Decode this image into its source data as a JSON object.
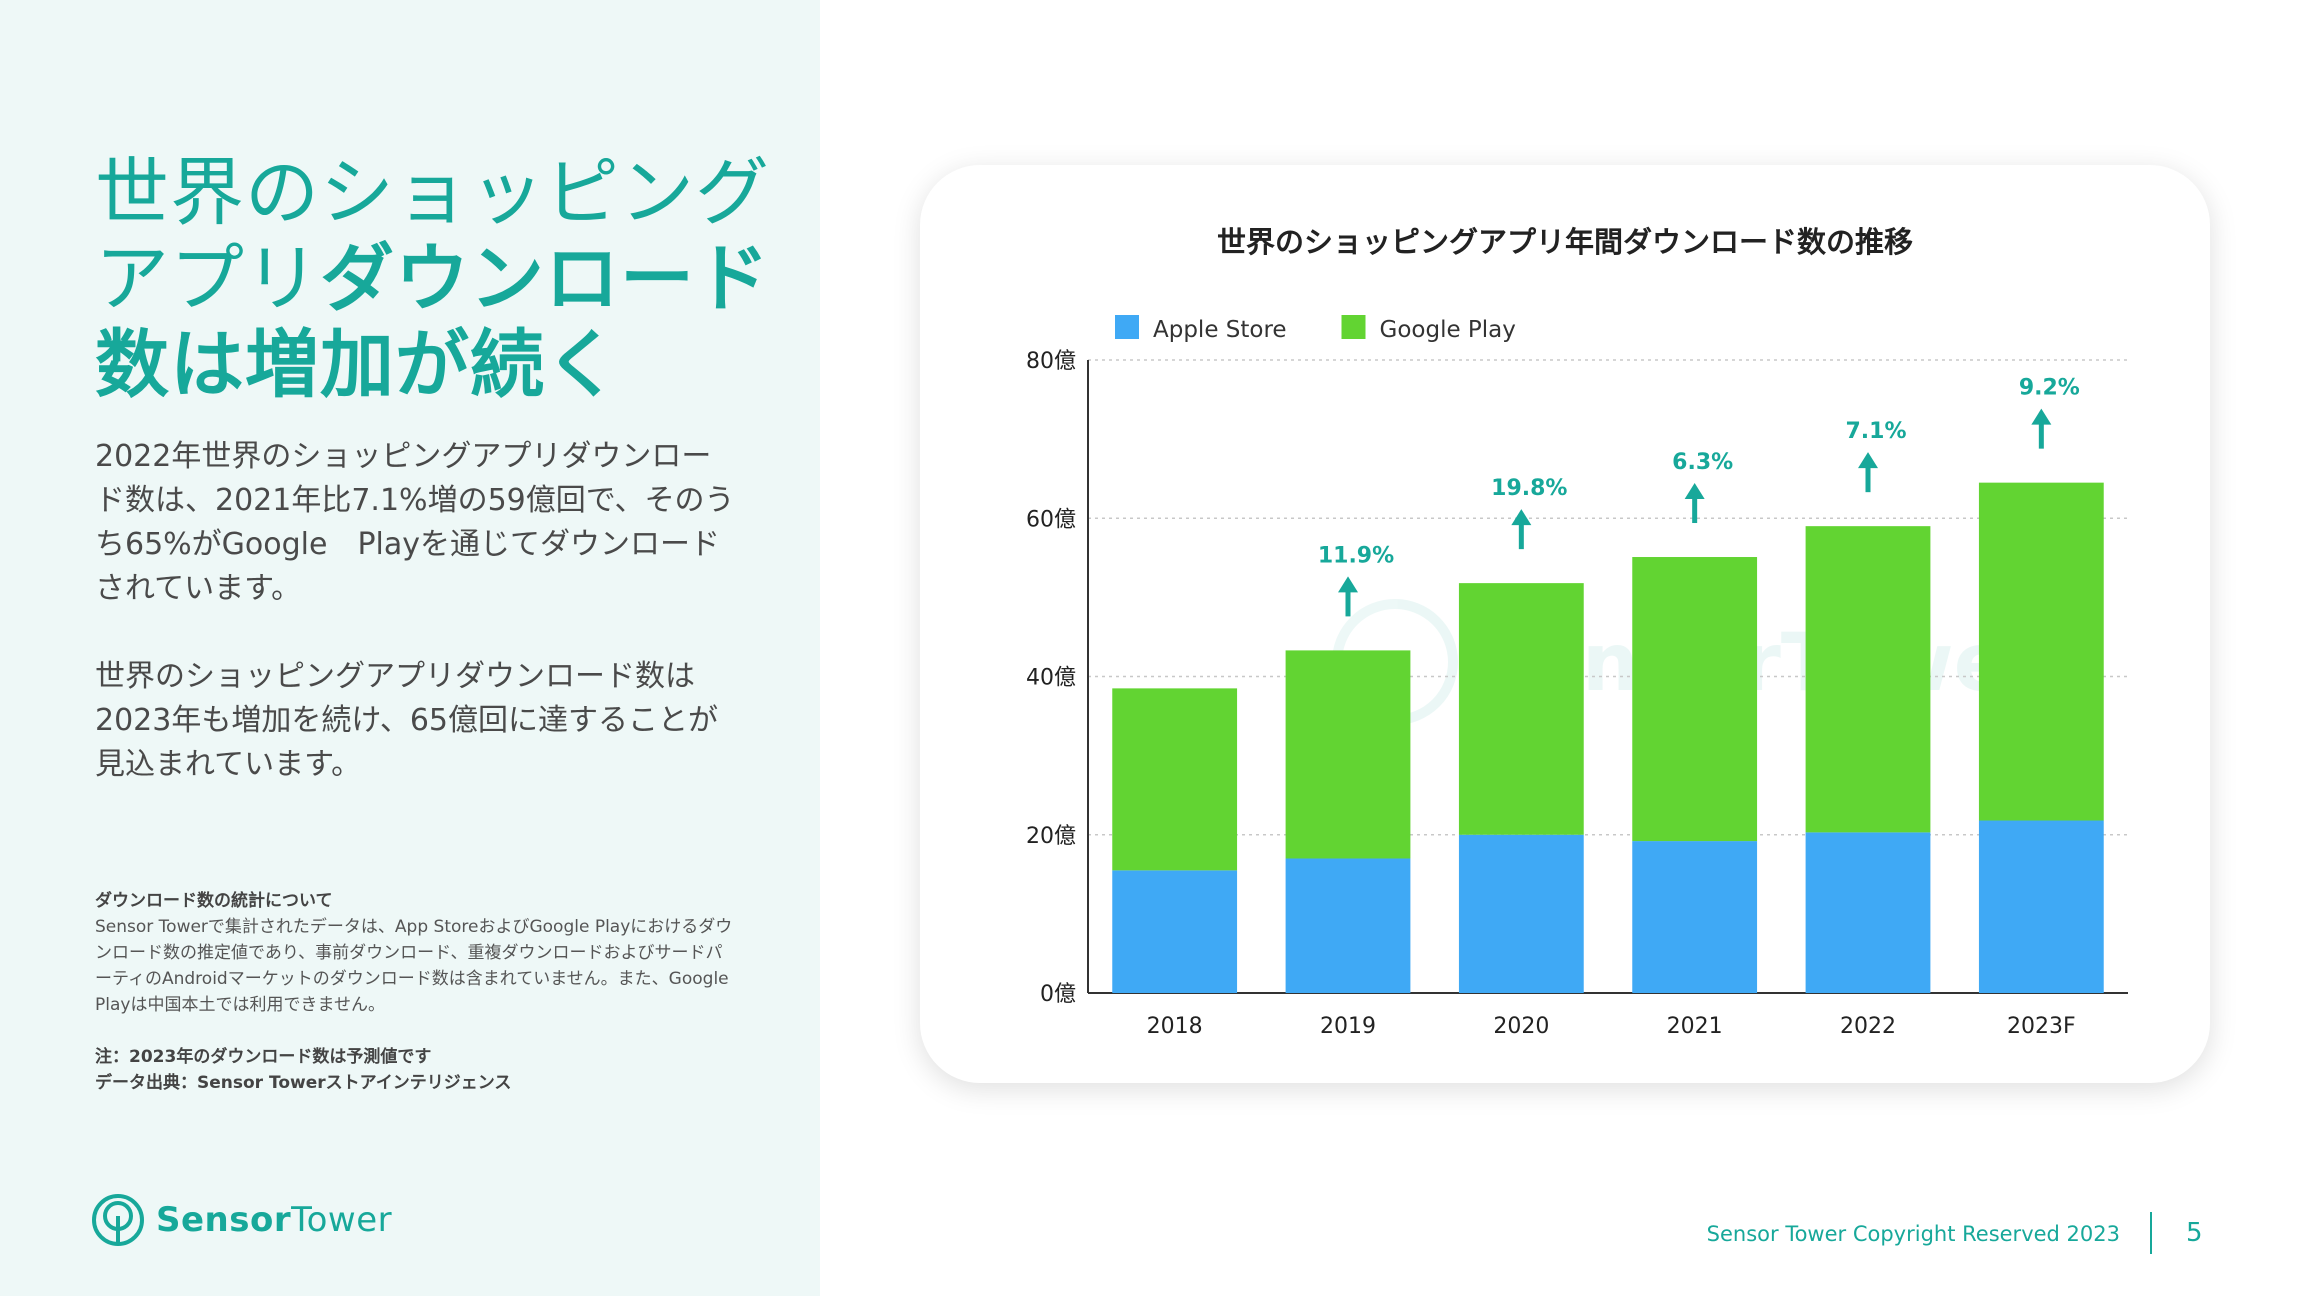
{
  "headline": {
    "part1": "世界のショッピング",
    "part2": "アプリ",
    "part3": "ダウンロード",
    "part4": "数は増加が続く"
  },
  "paragraphs": [
    "2022年世界のショッピングアプリダウンロード数は、2021年比7.1%増の59億回で、そのうち65%がGoogle　Playを通じてダウンロードされています。",
    "世界のショッピングアプリダウンロード数は2023年も増加を続け、65億回に達することが見込まれています。"
  ],
  "notes": {
    "heading": "ダウンロード数の統計について",
    "body": "Sensor Towerで集計されたデータは、App StoreおよびGoogle Playにおけるダウンロード数の推定値であり、事前ダウンロード、重複ダウンロードおよびサードパーティのAndroidマーケットのダウンロード数は含まれていません。また、Google Playは中国本土では利用できません。",
    "note": "注：2023年のダウンロード数は予測値です",
    "source": "データ出典：Sensor Towerストアインテリジェンス"
  },
  "logo": {
    "word1": "Sensor",
    "word2": "Tower",
    "icon": "sensor-tower-logo-icon"
  },
  "footer": {
    "copyright": "Sensor Tower Copyright Reserved 2023",
    "page_number": "5"
  },
  "colors": {
    "accent": "#17a89a",
    "apple": "#3fa9f5",
    "google": "#62d432"
  },
  "chart_data": {
    "type": "bar",
    "stacked": true,
    "title": "世界のショッピングアプリ年間ダウンロード数の推移",
    "categories": [
      "2018",
      "2019",
      "2020",
      "2021",
      "2022",
      "2023F"
    ],
    "series": [
      {
        "name": "Apple Store",
        "color": "#3fa9f5",
        "values": [
          15.5,
          17,
          20,
          19.2,
          20.3,
          21.8
        ]
      },
      {
        "name": "Google Play",
        "color": "#62d432",
        "values": [
          23,
          26.3,
          31.8,
          35.9,
          38.7,
          42.7
        ]
      }
    ],
    "growth_labels": [
      "",
      "11.9%",
      "19.8%",
      "6.3%",
      "7.1%",
      "9.2%"
    ],
    "y_ticks": [
      "0億",
      "20億",
      "40億",
      "60億",
      "80億"
    ],
    "ylim": [
      0,
      80
    ],
    "grid": true,
    "legend_position": "top-left",
    "watermark": "SensorTower"
  }
}
